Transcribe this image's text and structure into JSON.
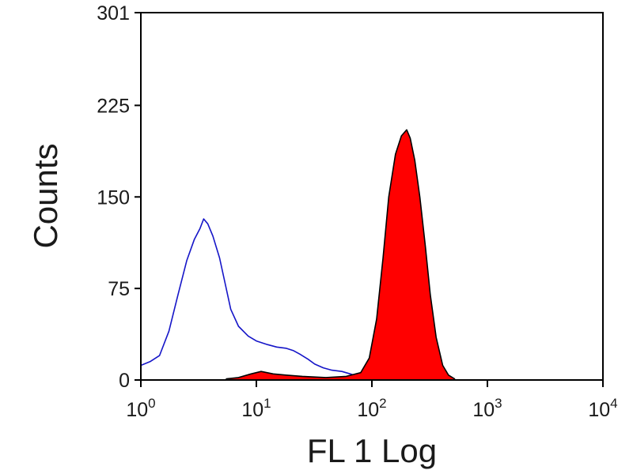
{
  "chart_data": {
    "type": "area",
    "title": "",
    "xlabel": "FL 1 Log",
    "ylabel": "Counts",
    "xscale": "log",
    "xlim": [
      1,
      10000
    ],
    "ylim": [
      0,
      301
    ],
    "grid": false,
    "yticks": [
      {
        "value": 0,
        "label": "0"
      },
      {
        "value": 75,
        "label": "75"
      },
      {
        "value": 150,
        "label": "150"
      },
      {
        "value": 225,
        "label": "225"
      },
      {
        "value": 301,
        "label": "301"
      }
    ],
    "xticks": [
      {
        "value": 1,
        "base": "10",
        "exp": "0"
      },
      {
        "value": 10,
        "base": "10",
        "exp": "1"
      },
      {
        "value": 100,
        "base": "10",
        "exp": "2"
      },
      {
        "value": 1000,
        "base": "10",
        "exp": "3"
      },
      {
        "value": 10000,
        "base": "10",
        "exp": "4"
      }
    ],
    "series": [
      {
        "style": "line",
        "color": "#1515c8",
        "points": [
          [
            1.0,
            12
          ],
          [
            1.2,
            15
          ],
          [
            1.45,
            20
          ],
          [
            1.75,
            40
          ],
          [
            2.1,
            70
          ],
          [
            2.5,
            98
          ],
          [
            2.9,
            115
          ],
          [
            3.25,
            124
          ],
          [
            3.5,
            132
          ],
          [
            3.8,
            128
          ],
          [
            4.2,
            118
          ],
          [
            4.8,
            100
          ],
          [
            5.4,
            78
          ],
          [
            6.0,
            58
          ],
          [
            7.0,
            44
          ],
          [
            8.5,
            36
          ],
          [
            10.0,
            32
          ],
          [
            12.5,
            29
          ],
          [
            15.0,
            27
          ],
          [
            18.0,
            26
          ],
          [
            21.0,
            24
          ],
          [
            24.0,
            21
          ],
          [
            28.0,
            17
          ],
          [
            32.0,
            13
          ],
          [
            38.0,
            10
          ],
          [
            45.0,
            8
          ],
          [
            55.0,
            7
          ],
          [
            65.0,
            5
          ],
          [
            75.0,
            3
          ]
        ]
      },
      {
        "style": "filled",
        "color": "#ff0000",
        "outline": "#000000",
        "points": [
          [
            5.5,
            1
          ],
          [
            7.0,
            2
          ],
          [
            9.0,
            5
          ],
          [
            11.0,
            7
          ],
          [
            14.0,
            5
          ],
          [
            18.0,
            4
          ],
          [
            25.0,
            3
          ],
          [
            40.0,
            2
          ],
          [
            60.0,
            3
          ],
          [
            80.0,
            6
          ],
          [
            95.0,
            18
          ],
          [
            110.0,
            50
          ],
          [
            125.0,
            100
          ],
          [
            140.0,
            150
          ],
          [
            160.0,
            185
          ],
          [
            180.0,
            200
          ],
          [
            200.0,
            205
          ],
          [
            215.0,
            198
          ],
          [
            235.0,
            180
          ],
          [
            260.0,
            150
          ],
          [
            290.0,
            110
          ],
          [
            320.0,
            70
          ],
          [
            360.0,
            35
          ],
          [
            410.0,
            12
          ],
          [
            460.0,
            4
          ],
          [
            520.0,
            1
          ]
        ]
      }
    ]
  }
}
